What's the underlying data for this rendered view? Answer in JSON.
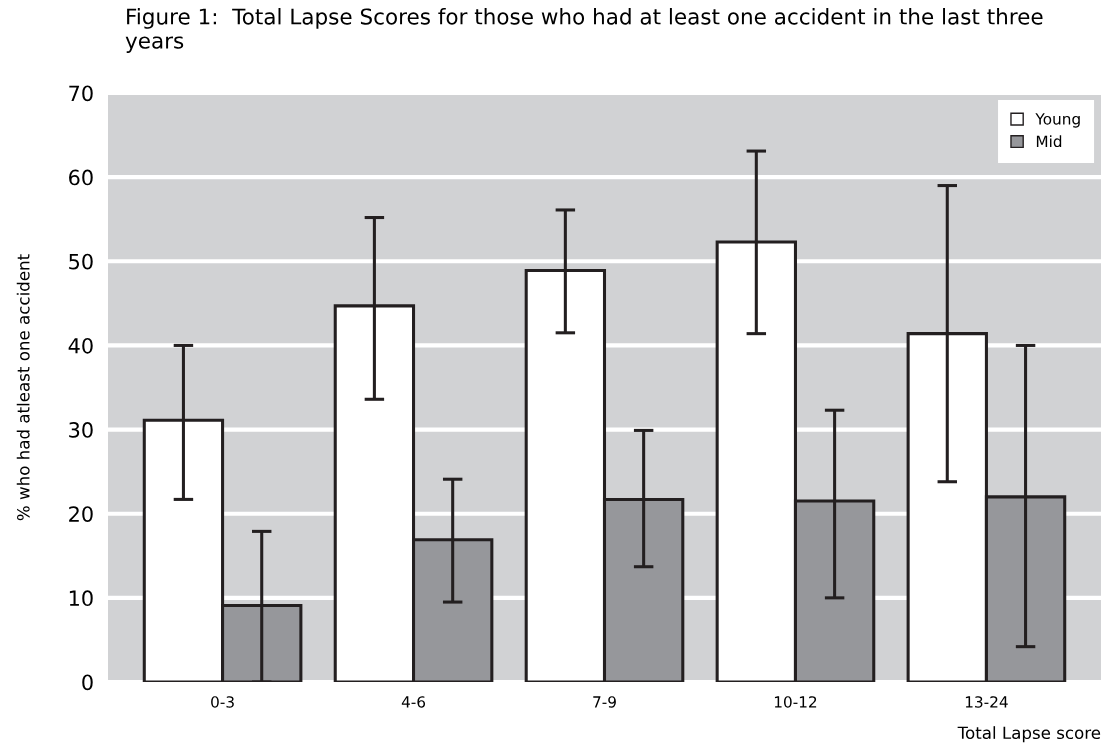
{
  "chart_data": {
    "type": "bar",
    "title": "Figure 1:  Total Lapse Scores for those who had at least one accident in the last three years",
    "xlabel": "Total Lapse score",
    "ylabel": "% who had atleast one accident",
    "categories": [
      "0-3",
      "4-6",
      "7-9",
      "10-12",
      "13-24"
    ],
    "series": [
      {
        "name": "Young",
        "color": "#ffffff",
        "values": [
          31.1,
          44.7,
          48.9,
          52.3,
          41.4
        ],
        "errors": [
          [
            21.7,
            40.0
          ],
          [
            33.6,
            55.2
          ],
          [
            41.5,
            56.1
          ],
          [
            41.4,
            63.1
          ],
          [
            23.8,
            59.0
          ]
        ]
      },
      {
        "name": "Mid",
        "color": "#96979b",
        "values": [
          9.1,
          16.9,
          21.7,
          21.5,
          22.0
        ],
        "errors": [
          [
            0,
            17.9
          ],
          [
            9.5,
            24.1
          ],
          [
            13.7,
            29.9
          ],
          [
            10.0,
            32.3
          ],
          [
            4.2,
            40.0
          ]
        ]
      }
    ],
    "ylim": [
      0,
      70
    ],
    "yticks": [
      0,
      10,
      20,
      30,
      40,
      50,
      60,
      70
    ],
    "grid": "y",
    "legend": "top right"
  }
}
